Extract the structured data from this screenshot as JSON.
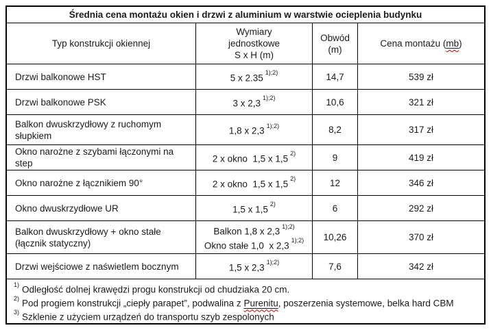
{
  "title": "Średnia cena montażu okien i drzwi z aluminium w warstwie ocieplenia budynku",
  "columns": {
    "type": "Typ konstrukcji okiennej",
    "dims_line1": "Wymiary",
    "dims_line2": "jednostkowe",
    "dims_line3": "S x H (m)",
    "obwod_line1": "Obwód",
    "obwod_line2": "(m)",
    "price_prefix": "Cena montażu (",
    "price_marked": "mb",
    "price_suffix": ")"
  },
  "rows": [
    {
      "type": "Drzwi balkonowe HST",
      "dims": [
        {
          "text": "5 x 2.35",
          "sup": "1);2)"
        }
      ],
      "obwod": "14,7",
      "price": "539 zł"
    },
    {
      "type": "Drzwi balkonowe PSK",
      "dims": [
        {
          "text": "3 x 2,3",
          "sup": "1);2)"
        }
      ],
      "obwod": "10,6",
      "price": "321 zł"
    },
    {
      "type": "Balkon dwuskrzydłowy z ruchomym słupkiem",
      "dims": [
        {
          "text": "1,8 x 2,3",
          "sup": "1);2)"
        }
      ],
      "obwod": "8,2",
      "price": "317 zł"
    },
    {
      "type": "Okno narożne z szybami łączonymi na step",
      "dims": [
        {
          "text": "2 x okno  1,5 x 1,5",
          "sup": "2)"
        }
      ],
      "obwod": "9",
      "price": "419 zł"
    },
    {
      "type": "Okno narożne z łącznikiem 90°",
      "dims": [
        {
          "text": "2 x okno  1,5 x 1,5",
          "sup": "2)"
        }
      ],
      "obwod": "12",
      "price": "346 zł"
    },
    {
      "type": "Okno dwuskrzydłowe UR",
      "dims": [
        {
          "text": "1,5 x 1,5",
          "sup": "2)"
        }
      ],
      "obwod": "6",
      "price": "292 zł"
    },
    {
      "type": "Balkon dwuskrzydłowy + okno stałe (łącznik statyczny)",
      "dims": [
        {
          "text": "Balkon 1,8 x 2,3",
          "sup": "1);2)"
        },
        {
          "text": "Okno stałe 1,0  x 2,3",
          "sup": "1);2)"
        }
      ],
      "obwod": "10,26",
      "price": "370 zł"
    },
    {
      "type": "Drzwi wejściowe z naświetlem bocznym",
      "dims": [
        {
          "text": "1,5 x 2,3",
          "sup": "1);2)"
        }
      ],
      "obwod": "7,6",
      "price": "342 zł"
    }
  ],
  "footnotes": [
    {
      "marker": "1)",
      "text": "Odległość dolnej krawędzi progu konstrukcji od chudziaka 20 cm."
    },
    {
      "marker": "2)",
      "before": "Pod progiem konstrukcji „ciepły parapet”, podwalina z ",
      "marked": "Purenitu",
      "after": ", poszerzenia systemowe, belka hard CBM"
    },
    {
      "marker": "3)",
      "text": "Szklenie z użyciem urządzeń do transportu szyb zespolonych"
    }
  ],
  "colors": {
    "border": "#000000",
    "text": "#1a1a1a",
    "spellcheck_squiggle": "#c00000"
  }
}
